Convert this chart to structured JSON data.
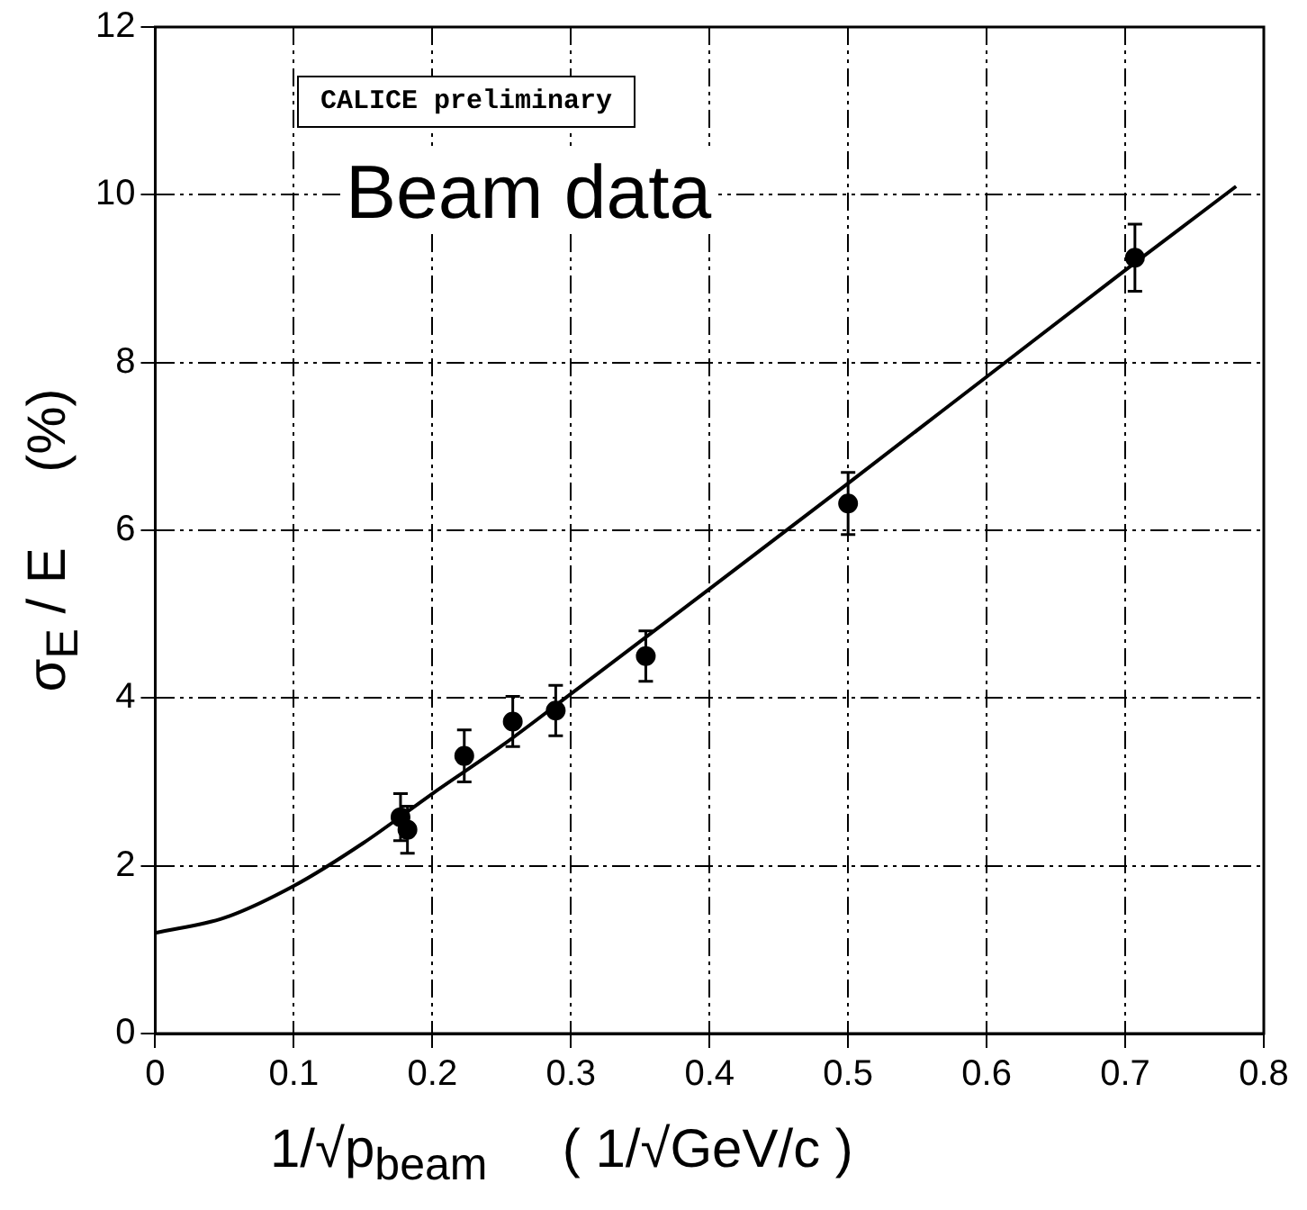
{
  "chart_data": {
    "type": "scatter",
    "xlabel": "1/√p$_{beam}$     ( 1/√GeV/c )",
    "ylabel": "σ$_{E}$ / E     (%)",
    "annotations": [
      "CALICE preliminary",
      "Beam data"
    ],
    "xlim": [
      0,
      0.8
    ],
    "xticks": [
      0,
      0.1,
      0.2,
      0.3,
      0.4,
      0.5,
      0.6,
      0.7,
      0.8
    ],
    "ylim": [
      0,
      12
    ],
    "yticks": [
      0,
      2,
      4,
      6,
      8,
      10,
      12
    ],
    "grid": true,
    "marker": "circle",
    "series": [
      {
        "color": "#000000",
        "x": [
          0.177,
          0.182,
          0.223,
          0.258,
          0.289,
          0.354,
          0.5,
          0.707
        ],
        "values": [
          2.58,
          2.43,
          3.31,
          3.72,
          3.85,
          4.5,
          6.32,
          9.25
        ],
        "errors": [
          0.28,
          0.28,
          0.31,
          0.3,
          0.3,
          0.3,
          0.37,
          0.4
        ]
      },
      {
        "type": "line",
        "color": "#000000",
        "marker": "none",
        "line_style": "solid",
        "x": [
          0,
          0.05,
          0.1,
          0.15,
          0.2,
          0.25,
          0.3,
          0.4,
          0.5,
          0.6,
          0.7,
          0.78
        ],
        "values": [
          1.2,
          1.38,
          1.76,
          2.27,
          2.86,
          3.43,
          4.05,
          5.3,
          6.56,
          7.83,
          9.1,
          10.1
        ]
      }
    ]
  }
}
